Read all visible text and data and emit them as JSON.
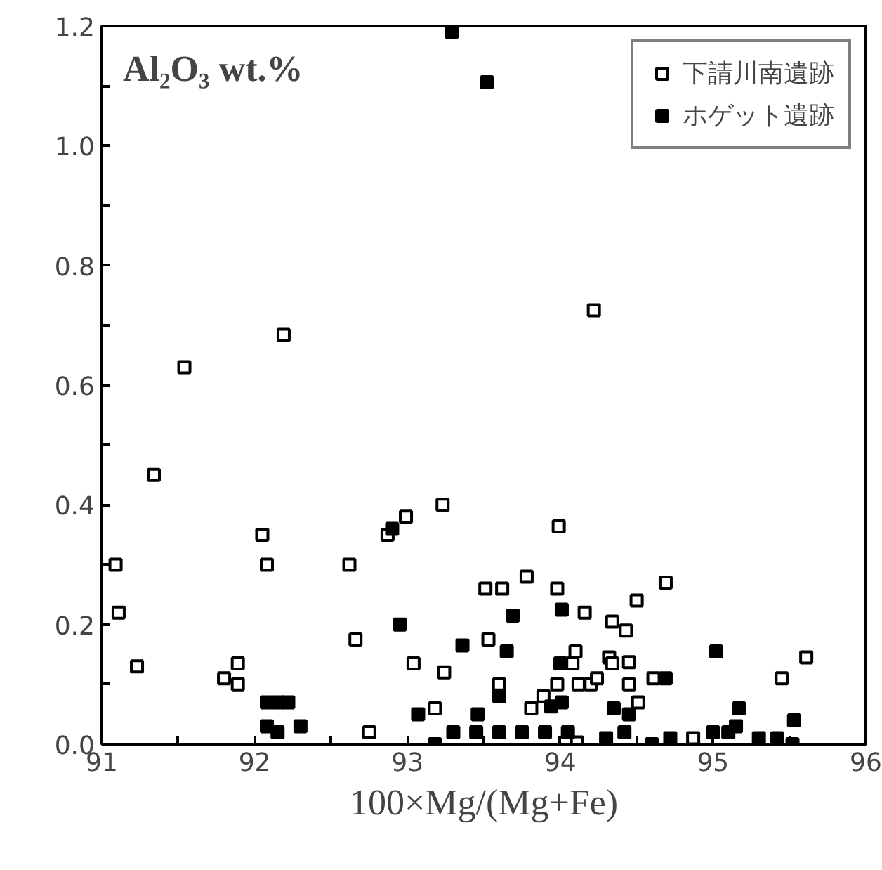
{
  "chart_data": {
    "type": "scatter",
    "xlabel": "100×Mg/(Mg+Fe)",
    "annotations": [
      "Al₂O₃ wt.%"
    ],
    "xlim": [
      91,
      96
    ],
    "ylim": [
      0,
      1.2
    ],
    "xticks": [
      91,
      {
        "value": 91.5,
        "label": null
      },
      92,
      {
        "value": 92.5,
        "label": null
      },
      93,
      {
        "value": 93.5,
        "label": null
      },
      94,
      {
        "value": 94.5,
        "label": null
      },
      95,
      {
        "value": 95.5,
        "label": null
      },
      96
    ],
    "yticks": [
      {
        "value": 0,
        "label": "0.0"
      },
      {
        "value": 0.1,
        "label": null
      },
      {
        "value": 0.2,
        "label": "0.2"
      },
      {
        "value": 0.3,
        "label": null
      },
      {
        "value": 0.4,
        "label": "0.4"
      },
      {
        "value": 0.5,
        "label": null
      },
      {
        "value": 0.6,
        "label": "0.6"
      },
      {
        "value": 0.7,
        "label": null
      },
      {
        "value": 0.8,
        "label": "0.8"
      },
      {
        "value": 0.9,
        "label": null
      },
      {
        "value": 1.0,
        "label": "1.0"
      },
      {
        "value": 1.1,
        "label": null
      },
      {
        "value": 1.2,
        "label": "1.2"
      }
    ],
    "grid": false,
    "legend": "top right",
    "marker": "square",
    "series": [
      {
        "name": "下請川南遺跡",
        "color": "#000000",
        "x": [
          91.09,
          91.11,
          91.23,
          91.34,
          91.54,
          91.8,
          91.89,
          91.89,
          92.05,
          92.08,
          92.19,
          92.62,
          92.66,
          92.75,
          92.87,
          92.99,
          93.04,
          93.18,
          93.23,
          93.24,
          93.51,
          93.53,
          93.6,
          93.62,
          93.78,
          93.81,
          93.89,
          93.98,
          93.98,
          93.99,
          94.08,
          94.1,
          94.11,
          94.12,
          94.16,
          94.2,
          94.22,
          94.24,
          94.32,
          94.34,
          94.34,
          94.43,
          94.45,
          94.45,
          94.5,
          94.51,
          94.61,
          94.69,
          94.87,
          95.45,
          95.61
        ],
        "values": [
          0.3,
          0.22,
          0.13,
          0.45,
          0.63,
          0.11,
          0.135,
          0.1,
          0.35,
          0.3,
          0.684,
          0.3,
          0.175,
          0.02,
          0.35,
          0.38,
          0.135,
          0.06,
          0.4,
          0.12,
          0.26,
          0.175,
          0.1,
          0.26,
          0.28,
          0.06,
          0.08,
          0.26,
          0.1,
          0.364,
          0.135,
          0.155,
          0.003,
          0.1,
          0.22,
          0.1,
          0.725,
          0.11,
          0.145,
          0.205,
          0.135,
          0.19,
          0.137,
          0.1,
          0.24,
          0.07,
          0.11,
          0.27,
          0.01,
          0.11,
          0.145
        ]
      },
      {
        "name": "ホゲット遺跡",
        "color": "#000000",
        "x": [
          92.08,
          92.15,
          92.22,
          92.08,
          92.15,
          92.3,
          92.9,
          92.95,
          93.07,
          93.18,
          93.29,
          93.36,
          93.46,
          93.52,
          93.6,
          93.65,
          93.69,
          93.94,
          94.0,
          94.01,
          94.01,
          94.35,
          94.45,
          94.69,
          95.02,
          95.15,
          95.17,
          95.53,
          93.3,
          93.45,
          93.6,
          93.75,
          93.9,
          94.05,
          94.3,
          94.42,
          94.6,
          94.72,
          95.0,
          95.1,
          95.3,
          95.42,
          95.52
        ],
        "values": [
          0.07,
          0.07,
          0.07,
          0.03,
          0.02,
          0.03,
          0.36,
          0.2,
          0.05,
          0.0,
          1.19,
          0.165,
          0.05,
          1.106,
          0.08,
          0.155,
          0.215,
          0.063,
          0.135,
          0.225,
          0.07,
          0.06,
          0.05,
          0.11,
          0.155,
          0.03,
          0.06,
          0.04,
          0.02,
          0.02,
          0.02,
          0.02,
          0.02,
          0.02,
          0.01,
          0.02,
          0.0,
          0.01,
          0.02,
          0.02,
          0.01,
          0.01,
          0.0
        ]
      }
    ]
  }
}
